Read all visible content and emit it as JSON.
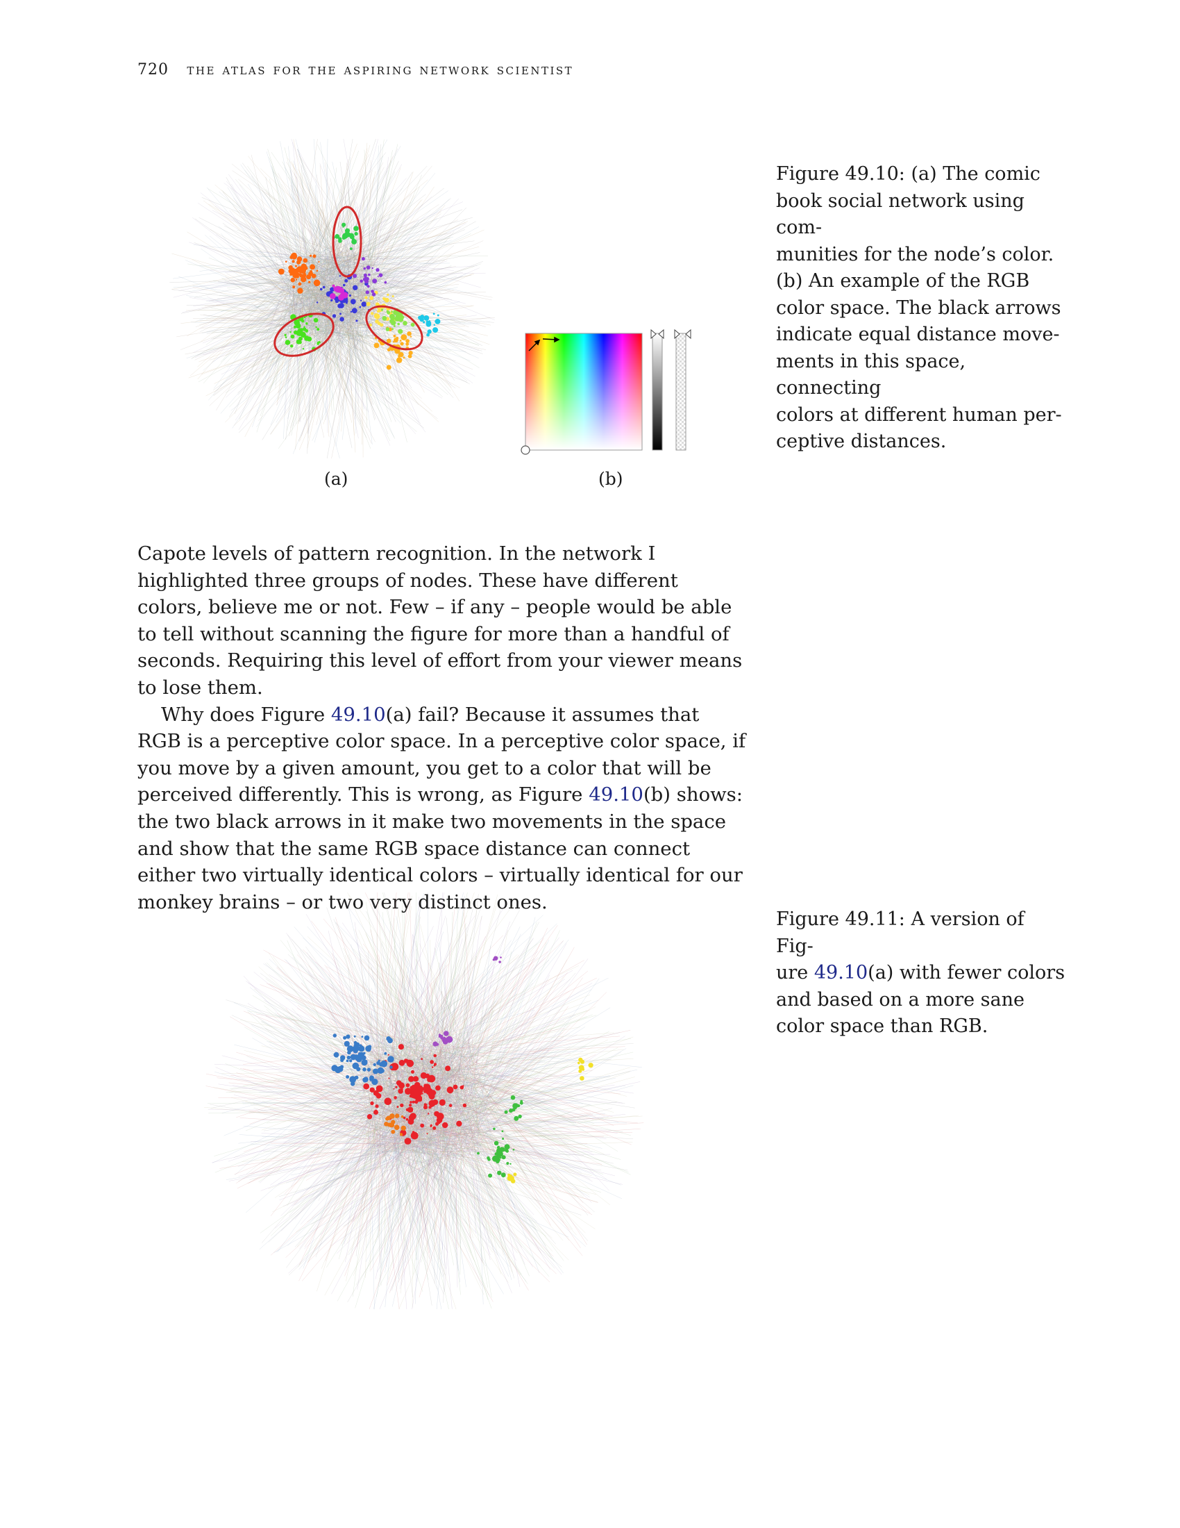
{
  "header": {
    "page_number": "720",
    "book_title": "THE ATLAS FOR THE ASPIRING NETWORK SCIENTIST"
  },
  "figure_10": {
    "subcaption_a": "(a)",
    "subcaption_b": "(b)",
    "caption_lines": [
      "Figure 49.10: (a) The comic",
      "book social network using com-",
      "munities for the node’s color.",
      "(b) An example of the RGB",
      "color space. The black arrows",
      "indicate equal distance move-",
      "ments in this space, connecting",
      "colors at different human per-",
      "ceptive distances."
    ]
  },
  "body": {
    "paragraph_1": "Capote levels of pattern recognition. In the network I highlighted three groups of nodes. These have different colors, believe me or not. Few – if any – people would be able to tell without scanning the figure for more than a handful of seconds. Requiring this level of effort from your viewer means to lose them.",
    "p2_a": "Why does Figure ",
    "p2_ref1": "49.10",
    "p2_b": "(a) fail? Because it assumes that RGB is a perceptive color space. In a perceptive color space, if you move by a given amount, you get to a color that will be perceived differently. This is wrong, as Figure ",
    "p2_ref2": "49.10",
    "p2_c": "(b) shows: the two black arrows in it make two movements in the space and show that the same RGB space distance can connect either two virtually identical colors – virtually identical for our monkey brains – or two very distinct ones."
  },
  "figure_11": {
    "caption_a": "Figure 49.11: A version of Fig-",
    "caption_b": "ure ",
    "caption_ref": "49.10",
    "caption_c": "(a) with fewer colors and based on a more sane color space than RGB."
  },
  "colors": {
    "link": "#1f2a8a",
    "highlight_ellipse": "#d12a2a",
    "fig11_red": "#e8232a",
    "fig11_blue": "#3a7cc8",
    "fig11_green": "#3fbf3f",
    "fig11_purple": "#a24fc4",
    "fig11_yellow": "#f2e02a",
    "fig11_orange": "#f07a1a"
  }
}
